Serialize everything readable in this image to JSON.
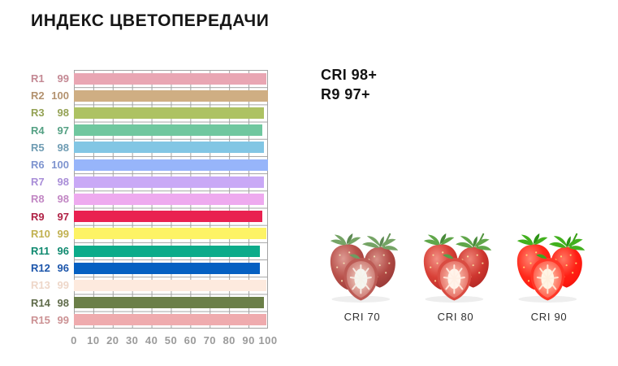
{
  "title": "ИНДЕКС ЦВЕТОПЕРЕДАЧИ",
  "summary": {
    "line1": "CRI 98+",
    "line2": "R9 97+"
  },
  "chart_data": {
    "type": "bar",
    "orientation": "horizontal",
    "title": "",
    "xlabel": "",
    "ylabel": "",
    "xlim": [
      0,
      100
    ],
    "x_ticks": [
      0,
      10,
      20,
      30,
      40,
      50,
      60,
      70,
      80,
      90,
      100
    ],
    "grid": true,
    "categories": [
      "R1",
      "R2",
      "R3",
      "R4",
      "R5",
      "R6",
      "R7",
      "R8",
      "R9",
      "R10",
      "R11",
      "R12",
      "R13",
      "R14",
      "R15"
    ],
    "values": [
      99,
      100,
      98,
      97,
      98,
      100,
      98,
      98,
      97,
      99,
      96,
      96,
      99,
      98,
      99
    ],
    "bar_colors": [
      "#e9a6b3",
      "#cfae83",
      "#adc263",
      "#70c79f",
      "#82c6e4",
      "#97b5fa",
      "#c9a9f6",
      "#eeaaef",
      "#e92150",
      "#fdf365",
      "#0cab8a",
      "#0560c2",
      "#fdeade",
      "#6b7f48",
      "#efabae"
    ],
    "label_colors": [
      "#c48994",
      "#b3926f",
      "#94a254",
      "#55a184",
      "#6f9cb3",
      "#7e94cf",
      "#a98ed8",
      "#c287c4",
      "#b02346",
      "#c1b150",
      "#108a70",
      "#1d56ab",
      "#eed7c9",
      "#5f6b4a",
      "#cc9294"
    ],
    "axis_text_color": "#9b9b9b",
    "grid_color": "#a3a3a3"
  },
  "comparison": {
    "items": [
      {
        "label": "CRI 70"
      },
      {
        "label": "CRI 80"
      },
      {
        "label": "CRI 90"
      }
    ],
    "image": "strawberries-icon"
  }
}
